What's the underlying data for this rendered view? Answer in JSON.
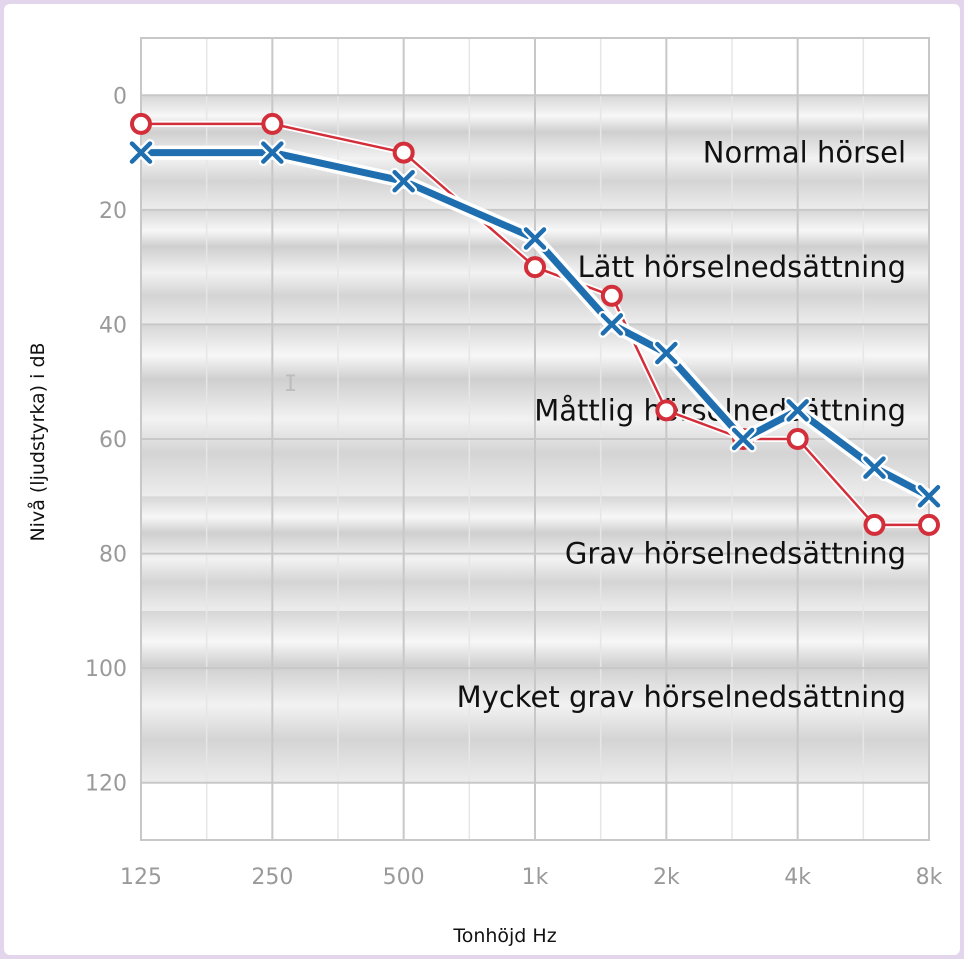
{
  "chart_data": {
    "type": "line",
    "xlabel": "Tonhöjd Hz",
    "ylabel": "Nivå (ljudstyrka) i dB",
    "x_ticks": [
      "125",
      "250",
      "500",
      "1k",
      "2k",
      "4k",
      "8k"
    ],
    "x_tick_values": [
      125,
      250,
      500,
      1000,
      2000,
      4000,
      8000
    ],
    "x_scale": "log",
    "ylim": [
      130,
      -10
    ],
    "y_inverted": true,
    "y_ticks": [
      0,
      20,
      40,
      60,
      80,
      100,
      120
    ],
    "grid": true,
    "bands": [
      {
        "label": "Normal hörsel",
        "from": 0,
        "to": 20
      },
      {
        "label": "Lätt hörselnedsättning",
        "from": 20,
        "to": 40
      },
      {
        "label": "Måttlig hörselnedsättning",
        "from": 40,
        "to": 70
      },
      {
        "label": "Grav hörselnedsättning",
        "from": 70,
        "to": 90
      },
      {
        "label": "Mycket grav hörselnedsättning",
        "from": 90,
        "to": 120
      }
    ],
    "series": [
      {
        "marker": "circle",
        "color": "#d32f3a",
        "x": [
          125,
          250,
          500,
          1000,
          1500,
          2000,
          3000,
          4000,
          6000,
          8000
        ],
        "y": [
          5,
          5,
          10,
          30,
          35,
          55,
          60,
          60,
          75,
          75
        ]
      },
      {
        "marker": "cross",
        "color": "#1f6fb0",
        "x": [
          125,
          250,
          500,
          1000,
          1500,
          2000,
          3000,
          4000,
          6000,
          8000
        ],
        "y": [
          10,
          10,
          15,
          25,
          40,
          45,
          60,
          55,
          65,
          70
        ]
      }
    ]
  }
}
